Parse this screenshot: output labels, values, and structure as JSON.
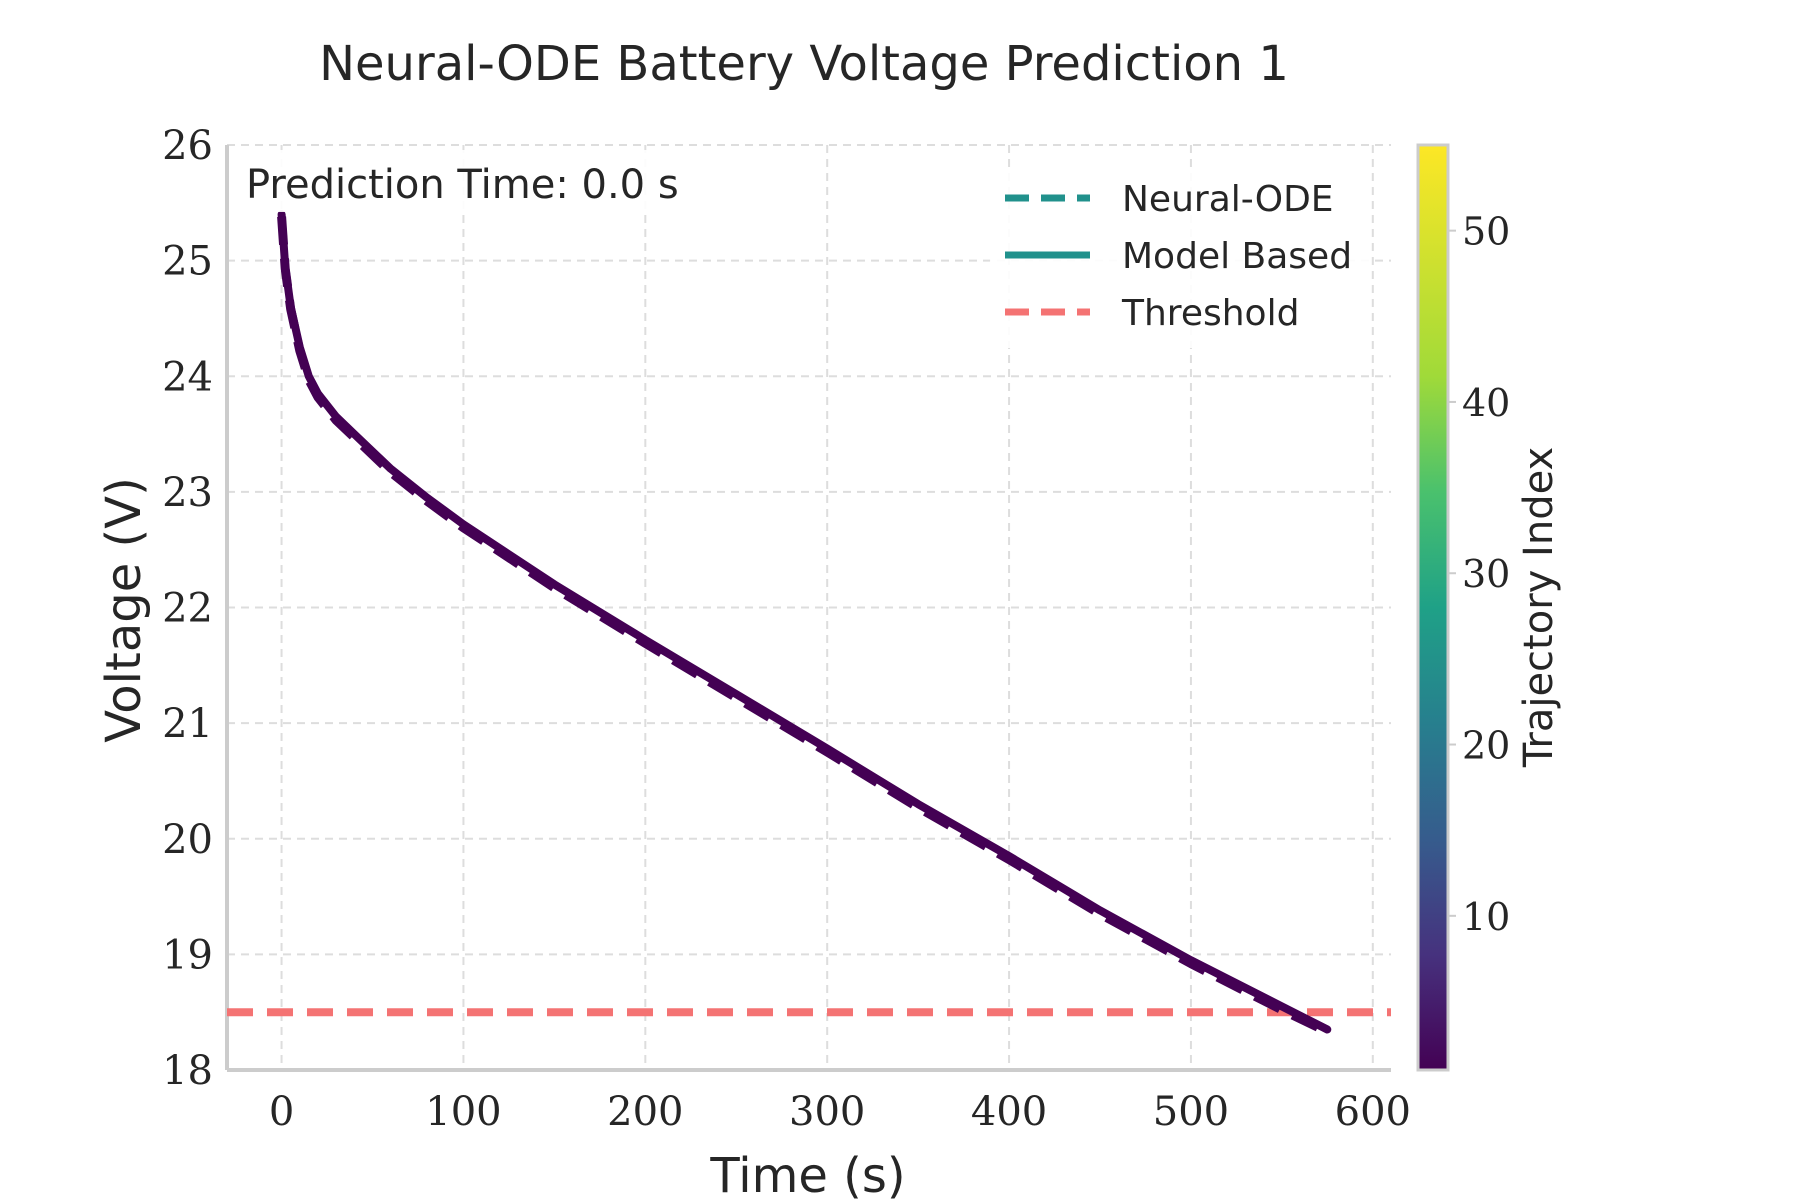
{
  "chart_data": {
    "type": "line",
    "title": "Neural-ODE Battery Voltage Prediction 1",
    "xlabel": "Time (s)",
    "ylabel": "Voltage (V)",
    "xlim": [
      -30,
      610
    ],
    "ylim": [
      18,
      26
    ],
    "xticks": [
      0,
      100,
      200,
      300,
      400,
      500,
      600
    ],
    "yticks": [
      18,
      19,
      20,
      21,
      22,
      23,
      24,
      25,
      26
    ],
    "grid": true,
    "annotation": "Prediction Time: 0.0 s",
    "legend": {
      "position": "top-right",
      "entries": [
        {
          "label": "Neural-ODE",
          "style": "dashed",
          "color": "#21918c"
        },
        {
          "label": "Model Based",
          "style": "solid",
          "color": "#21918c"
        },
        {
          "label": "Threshold",
          "style": "dashed",
          "color": "#f47373"
        }
      ]
    },
    "threshold": {
      "y": 18.5,
      "color": "#f47373"
    },
    "series": [
      {
        "style": "solid",
        "color": "#440154",
        "x": [
          0,
          2,
          5,
          10,
          15,
          20,
          30,
          40,
          60,
          80,
          100,
          150,
          200,
          250,
          300,
          350,
          400,
          450,
          500,
          550,
          575
        ],
        "y": [
          25.4,
          24.95,
          24.6,
          24.25,
          24.0,
          23.85,
          23.65,
          23.5,
          23.2,
          22.95,
          22.72,
          22.2,
          21.72,
          21.25,
          20.78,
          20.3,
          19.85,
          19.38,
          18.95,
          18.55,
          18.35
        ]
      },
      {
        "style": "dashed",
        "color": "#440154",
        "x": [
          0,
          2,
          5,
          10,
          15,
          20,
          30,
          40,
          60,
          80,
          100,
          150,
          200,
          250,
          300,
          350,
          400,
          450,
          500,
          550,
          575
        ],
        "y": [
          25.38,
          24.93,
          24.58,
          24.22,
          23.97,
          23.82,
          23.62,
          23.47,
          23.17,
          22.92,
          22.69,
          22.17,
          21.69,
          21.22,
          20.75,
          20.27,
          19.82,
          19.35,
          18.92,
          18.52,
          18.33
        ]
      }
    ],
    "colorbar": {
      "label": "Trajectory Index",
      "range": [
        1,
        55
      ],
      "ticks": [
        10,
        20,
        30,
        40,
        50
      ],
      "colormap": "viridis"
    }
  }
}
